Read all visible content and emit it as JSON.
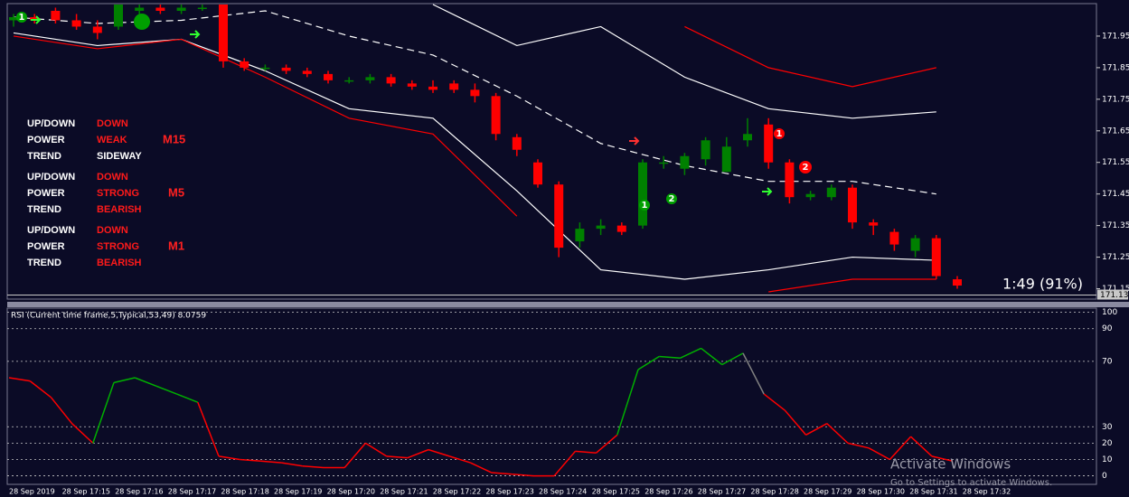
{
  "chart_data": [
    {
      "type": "candlestick",
      "up_color": "#008000",
      "down_color": "#ff0000",
      "open": [
        172.0,
        172.01,
        172.03,
        172.0,
        171.98,
        171.98,
        172.03,
        172.04,
        172.03,
        172.04,
        172.05,
        171.87,
        171.85,
        171.85,
        171.84,
        171.83,
        171.81,
        171.81,
        171.82,
        171.8,
        171.79,
        171.8,
        171.78,
        171.76,
        171.63,
        171.55,
        171.48,
        171.3,
        171.34,
        171.35,
        171.35,
        171.55,
        171.53,
        171.56,
        171.52,
        171.62,
        171.67,
        171.55,
        171.44,
        171.44,
        171.47,
        171.36,
        171.33,
        171.27,
        171.31,
        171.18
      ],
      "high": [
        172.02,
        172.02,
        172.04,
        172.02,
        172.0,
        172.05,
        172.05,
        172.05,
        172.05,
        172.05,
        172.05,
        171.88,
        171.86,
        171.86,
        171.85,
        171.84,
        171.82,
        171.83,
        171.83,
        171.81,
        171.81,
        171.81,
        171.8,
        171.77,
        171.64,
        171.56,
        171.49,
        171.36,
        171.37,
        171.36,
        171.56,
        171.57,
        171.58,
        171.63,
        171.63,
        171.69,
        171.69,
        171.56,
        171.46,
        171.48,
        171.48,
        171.37,
        171.34,
        171.32,
        171.32,
        171.19
      ],
      "low": [
        171.98,
        171.99,
        171.99,
        171.97,
        171.94,
        171.97,
        172.02,
        172.02,
        172.02,
        172.03,
        171.85,
        171.84,
        171.84,
        171.83,
        171.82,
        171.8,
        171.8,
        171.8,
        171.79,
        171.78,
        171.77,
        171.77,
        171.74,
        171.62,
        171.57,
        171.47,
        171.25,
        171.28,
        171.32,
        171.32,
        171.34,
        171.53,
        171.51,
        171.54,
        171.52,
        171.6,
        171.53,
        171.42,
        171.43,
        171.43,
        171.34,
        171.32,
        171.27,
        171.25,
        171.18,
        171.15
      ],
      "close": [
        172.01,
        172.0,
        172.0,
        171.98,
        171.96,
        172.05,
        172.04,
        172.03,
        172.04,
        172.04,
        171.87,
        171.85,
        171.85,
        171.84,
        171.83,
        171.81,
        171.81,
        171.82,
        171.8,
        171.79,
        171.78,
        171.78,
        171.76,
        171.64,
        171.59,
        171.48,
        171.28,
        171.34,
        171.35,
        171.33,
        171.55,
        171.55,
        171.57,
        171.62,
        171.6,
        171.64,
        171.55,
        171.44,
        171.45,
        171.47,
        171.36,
        171.35,
        171.29,
        171.31,
        171.19,
        171.16
      ],
      "bands": [
        {
          "color": "#ffffff",
          "dashed": true,
          "values": [
            172.01,
            171.99,
            172.0,
            172.03,
            171.95,
            171.89,
            171.76,
            171.61,
            171.54,
            171.49,
            171.49,
            171.45
          ]
        },
        {
          "color": "#ffffff",
          "dashed": false,
          "values": [
            null,
            null,
            null,
            null,
            null,
            172.05,
            171.92,
            171.98,
            171.82,
            171.72,
            171.69,
            171.71
          ]
        },
        {
          "color": "#ffffff",
          "dashed": false,
          "values": [
            171.96,
            171.92,
            171.94,
            171.84,
            171.72,
            171.69,
            171.46,
            171.21,
            171.18,
            171.21,
            171.25,
            171.24
          ]
        },
        {
          "color": "#ff0000",
          "dashed": false,
          "values": [
            null,
            null,
            null,
            null,
            null,
            null,
            null,
            null,
            171.98,
            171.85,
            171.79,
            171.85
          ]
        },
        {
          "color": "#ff0000",
          "dashed": false,
          "values": [
            171.95,
            171.91,
            171.94,
            171.82,
            171.69,
            171.64,
            171.38,
            null,
            null,
            171.14,
            171.18,
            171.18
          ]
        }
      ],
      "ylim": [
        171.12,
        172.05
      ],
      "yticks": [
        171.15,
        171.25,
        171.35,
        171.45,
        171.55,
        171.65,
        171.75,
        171.85,
        171.95
      ],
      "current_price": 171.13,
      "current_price_label": "171.13",
      "annotation": "1:49 (91%)"
    },
    {
      "type": "line",
      "title": "RSI (Current time frame,5,Typical,53,49) 8.0759",
      "values": [
        60,
        58,
        48,
        32,
        20,
        57,
        60,
        55,
        50,
        45,
        12,
        10,
        9,
        8,
        6,
        5,
        5,
        20,
        12,
        11,
        16,
        12,
        8,
        2,
        1,
        0,
        0,
        15,
        14,
        25,
        65,
        73,
        72,
        78,
        68,
        75,
        50,
        40,
        25,
        32,
        20,
        17,
        10,
        24,
        12,
        9
      ],
      "colors": [
        "#ff0000",
        "#ff0000",
        "#ff0000",
        "#ff0000",
        "#ff0000",
        "#00b000",
        "#00b000",
        "#00b000",
        "#00b000",
        "#00b000",
        "#ff0000",
        "#ff0000",
        "#ff0000",
        "#ff0000",
        "#ff0000",
        "#ff0000",
        "#ff0000",
        "#ff0000",
        "#ff0000",
        "#ff0000",
        "#ff0000",
        "#ff0000",
        "#ff0000",
        "#ff0000",
        "#ff0000",
        "#ff0000",
        "#ff0000",
        "#ff0000",
        "#ff0000",
        "#ff0000",
        "#00b000",
        "#00b000",
        "#00b000",
        "#00b000",
        "#00b000",
        "#00b000",
        "#808080",
        "#ff0000",
        "#ff0000",
        "#ff0000",
        "#ff0000",
        "#ff0000",
        "#ff0000",
        "#ff0000",
        "#ff0000",
        "#ff0000"
      ],
      "ylim": [
        -3,
        102
      ],
      "yticks": [
        0,
        10,
        20,
        30,
        70,
        90,
        100
      ]
    }
  ],
  "time_labels": [
    "28 Sep 2019",
    "28 Sep 17:15",
    "28 Sep 17:16",
    "28 Sep 17:17",
    "28 Sep 17:18",
    "28 Sep 17:19",
    "28 Sep 17:20",
    "28 Sep 17:21",
    "28 Sep 17:22",
    "28 Sep 17:23",
    "28 Sep 17:24",
    "28 Sep 17:25",
    "28 Sep 17:26",
    "28 Sep 17:27",
    "28 Sep 17:28",
    "28 Sep 17:29",
    "28 Sep 17:30",
    "28 Sep 17:31",
    "28 Sep 17:32"
  ],
  "info_panel": [
    {
      "timeframe": "M15",
      "rows": [
        [
          "UP/DOWN",
          "DOWN"
        ],
        [
          "POWER",
          "WEAK"
        ],
        [
          "TREND",
          "SIDEWAY"
        ]
      ]
    },
    {
      "timeframe": "M5",
      "rows": [
        [
          "UP/DOWN",
          "DOWN"
        ],
        [
          "POWER",
          "STRONG"
        ],
        [
          "TREND",
          "BEARISH"
        ]
      ]
    },
    {
      "timeframe": "M1",
      "rows": [
        [
          "UP/DOWN",
          "DOWN"
        ],
        [
          "POWER",
          "STRONG"
        ],
        [
          "TREND",
          "BEARISH"
        ]
      ]
    }
  ],
  "signals": [
    "1",
    "1",
    "2",
    "1",
    "2"
  ],
  "watermark": {
    "title": "Activate Windows",
    "subtitle": "Go to Settings to activate Windows."
  }
}
